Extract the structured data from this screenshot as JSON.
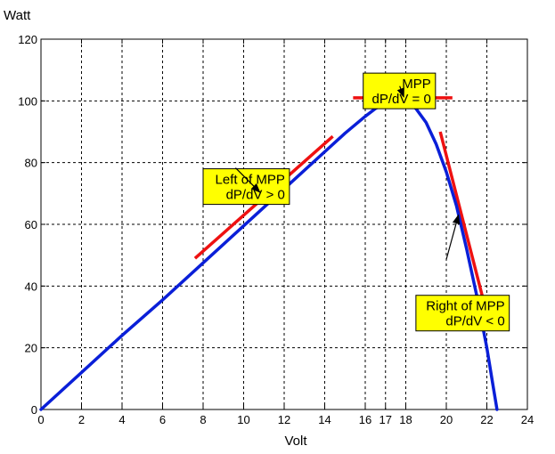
{
  "chart_data": {
    "type": "line",
    "xlabel": "Volt",
    "ylabel": "Watt",
    "xlim": [
      0,
      24
    ],
    "ylim": [
      0,
      120
    ],
    "x_ticks": [
      0,
      2,
      4,
      6,
      8,
      10,
      12,
      14,
      16,
      17,
      18,
      20,
      22,
      24
    ],
    "y_ticks": [
      0,
      20,
      40,
      60,
      80,
      100,
      120
    ],
    "grid": true,
    "series": [
      {
        "color": "#0a1fd8",
        "points": [
          [
            0,
            0
          ],
          [
            2,
            12
          ],
          [
            4,
            24
          ],
          [
            6,
            35.5
          ],
          [
            8,
            47.5
          ],
          [
            10,
            59.5
          ],
          [
            12,
            71.5
          ],
          [
            14,
            83.5
          ],
          [
            15,
            89.5
          ],
          [
            16,
            95
          ],
          [
            16.5,
            97.5
          ],
          [
            17,
            99.2
          ],
          [
            17.5,
            100
          ],
          [
            18,
            99.8
          ],
          [
            18.5,
            97.5
          ],
          [
            19,
            93
          ],
          [
            19.5,
            86
          ],
          [
            20,
            77
          ],
          [
            20.5,
            66
          ],
          [
            21,
            52
          ],
          [
            21.5,
            37
          ],
          [
            22,
            20
          ],
          [
            22.3,
            8
          ],
          [
            22.5,
            0
          ]
        ]
      }
    ],
    "tangent_lines": [
      {
        "name": "left",
        "color": "#ee1111",
        "from": [
          7.6,
          49
        ],
        "to": [
          14.4,
          88.5
        ]
      },
      {
        "name": "mpp",
        "color": "#ee1111",
        "from": [
          15.4,
          101
        ],
        "to": [
          20.3,
          101
        ]
      },
      {
        "name": "right",
        "color": "#ee1111",
        "from": [
          19.7,
          90
        ],
        "to": [
          22,
          31
        ]
      }
    ],
    "annotations": [
      {
        "lines": [
          "MPP",
          "dP/dV = 0"
        ],
        "box_at": [
          15.9,
          109
        ],
        "arrow_from": [
          17.7,
          104.8
        ],
        "arrow_to": [
          17.9,
          101.3
        ],
        "box_color": "#ffff00"
      },
      {
        "lines": [
          "Left of MPP",
          "dP/dV > 0"
        ],
        "box_at": [
          8.0,
          78
        ],
        "arrow_from": [
          9.6,
          78.3
        ],
        "arrow_to": [
          10.8,
          70.4
        ],
        "box_color": "#ffff00"
      },
      {
        "lines": [
          "Right of MPP",
          "dP/dV < 0"
        ],
        "box_at": [
          18.5,
          37
        ],
        "arrow_from": [
          20.0,
          48.6
        ],
        "arrow_to": [
          20.6,
          63
        ],
        "box_color": "#ffff00"
      }
    ]
  }
}
